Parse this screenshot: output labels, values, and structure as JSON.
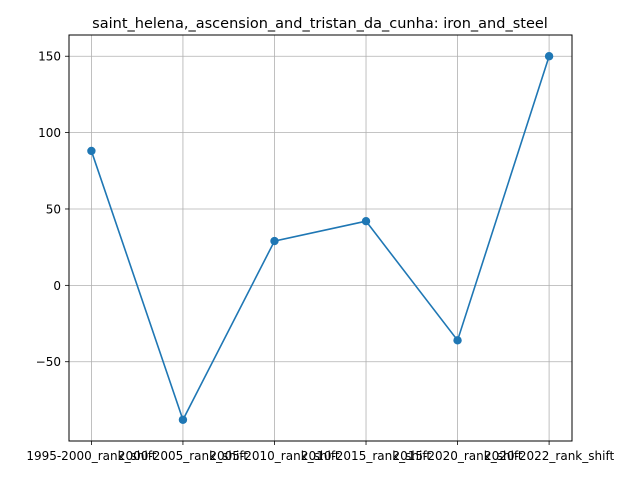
{
  "chart_data": {
    "type": "line",
    "title": "saint_helena,_ascension_and_tristan_da_cunha: iron_and_steel",
    "xlabel": "",
    "ylabel": "",
    "categories": [
      "1995-2000_rank_shift",
      "2000-2005_rank_shift",
      "2005-2010_rank_shift",
      "2010-2015_rank_shift",
      "2015-2020_rank_shift",
      "2020-2022_rank_shift"
    ],
    "series": [
      {
        "values": [
          88,
          -88,
          29,
          42,
          -36,
          150
        ]
      }
    ],
    "ylim": [
      -101.9,
      163.9
    ],
    "yticks": [
      -50,
      0,
      50,
      100,
      150
    ],
    "ytick_labels": [
      "−50",
      "0",
      "50",
      "100",
      "150"
    ],
    "grid": true,
    "line_color": "#1f77b4"
  }
}
